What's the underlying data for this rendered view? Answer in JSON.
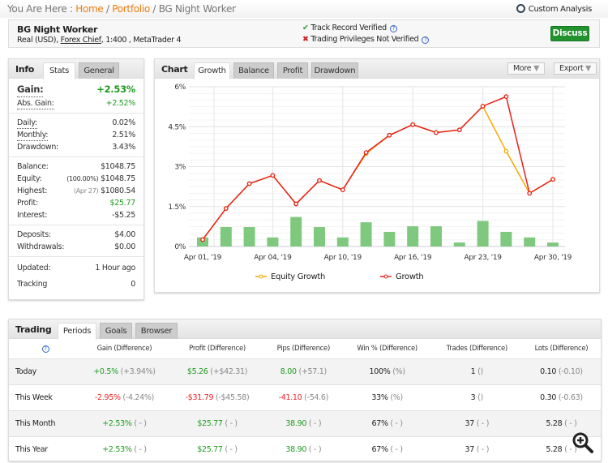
{
  "breadcrumb": {
    "prefix": "You Are Here : ",
    "home": "Home",
    "portfolio": "Portfolio",
    "current": "BG Night Worker",
    "custom_analysis": "Custom Analysis"
  },
  "header": {
    "title": "BG Night Worker",
    "sub_pre": "Real (USD), ",
    "broker": "Forex Chief",
    "sub_post": ", 1:400 , MetaTrader 4",
    "verified": "Track Record Verified",
    "not_verified": "Trading Privileges Not Verified",
    "discuss": "Discuss",
    "colors": {
      "accent": "#f07c12",
      "green": "#22922e"
    }
  },
  "info": {
    "label": "Info",
    "tabs": [
      "Stats",
      "General"
    ],
    "gain_label": "Gain:",
    "gain": "+2.53%",
    "abs_label": "Abs. Gain:",
    "abs": "+2.52%",
    "daily_label": "Daily:",
    "daily": "0.02%",
    "monthly_label": "Monthly:",
    "monthly": "2.51%",
    "drawdown_label": "Drawdown:",
    "drawdown": "3.43%",
    "balance_label": "Balance:",
    "balance": "$1048.75",
    "equity_label": "Equity:",
    "equity_pct": "(100.00%)",
    "equity": "$1048.75",
    "highest_label": "Highest:",
    "highest_date": "(Apr 27)",
    "highest": "$1080.54",
    "profit_label": "Profit:",
    "profit": "$25.77",
    "interest_label": "Interest:",
    "interest": "-$5.25",
    "deposits_label": "Deposits:",
    "deposits": "$4.00",
    "withdrawals_label": "Withdrawals:",
    "withdrawals": "$0.00",
    "updated_label": "Updated:",
    "updated": "1 Hour ago",
    "tracking_label": "Tracking",
    "tracking": "0"
  },
  "chart": {
    "label": "Chart",
    "tabs": [
      "Growth",
      "Balance",
      "Profit",
      "Drawdown"
    ],
    "more": "More",
    "export": "Export"
  },
  "chart_data": {
    "type": "line",
    "title": "Growth",
    "ylim": [
      0,
      6
    ],
    "yticks": [
      "0%",
      "1.5%",
      "3%",
      "4.5%",
      "6%"
    ],
    "ytick_values": [
      0,
      1.5,
      3,
      4.5,
      6
    ],
    "xlabels": [
      {
        "i": 0,
        "text": "Apr 01, '19"
      },
      {
        "i": 3,
        "text": "Apr 04, '19"
      },
      {
        "i": 6,
        "text": "Apr 10, '19"
      },
      {
        "i": 9,
        "text": "Apr 16, '19"
      },
      {
        "i": 12,
        "text": "Apr 23, '19"
      },
      {
        "i": 15,
        "text": "Apr 30, '19"
      }
    ],
    "series": [
      {
        "name": "Equity Growth",
        "color": "#f5a800",
        "values": [
          0.26,
          1.43,
          2.36,
          2.67,
          1.6,
          2.48,
          2.13,
          3.49,
          4.18,
          4.58,
          4.28,
          4.38,
          5.27,
          3.58,
          2.0,
          2.52
        ]
      },
      {
        "name": "Growth",
        "color": "#e8201a",
        "values": [
          0.26,
          1.43,
          2.36,
          2.67,
          1.6,
          2.48,
          2.13,
          3.53,
          4.18,
          4.58,
          4.28,
          4.38,
          5.27,
          5.63,
          2.0,
          2.52
        ]
      }
    ],
    "bars": {
      "color": "#7fc97f",
      "values": [
        0.34,
        0.73,
        0.73,
        0.34,
        1.11,
        0.73,
        0.34,
        0.91,
        0.55,
        0.76,
        0.76,
        0.15,
        0.96,
        0.55,
        0.34,
        0.15
      ]
    },
    "legend": "bottom"
  },
  "trading": {
    "label": "Trading",
    "tabs": [
      "Periods",
      "Goals",
      "Browser"
    ],
    "headers": [
      "Gain (Difference)",
      "Profit (Difference)",
      "Pips (Difference)",
      "Win % (Difference)",
      "Trades (Difference)",
      "Lots (Difference)"
    ],
    "rows": [
      {
        "period": "Today",
        "gain": "+0.5%",
        "gain_d": "(+3.94%)",
        "gc": "g",
        "profit": "$5.26",
        "profit_d": "(+$42.31)",
        "pips": "8.00",
        "pips_d": "(+57.1)",
        "win": "100%",
        "win_d": "(%)",
        "trades": "1",
        "trades_d": "()",
        "lots": "0.10",
        "lots_d": "(-0.10)"
      },
      {
        "period": "This Week",
        "gain": "-2.95%",
        "gain_d": "(-4.24%)",
        "gc": "r",
        "profit": "-$31.79",
        "profit_d": "(-$45.58)",
        "pips": "-41.10",
        "pips_d": "(-54.6)",
        "win": "33%",
        "win_d": "(%)",
        "trades": "3",
        "trades_d": "()",
        "lots": "0.30",
        "lots_d": "(-0.63)"
      },
      {
        "period": "This Month",
        "gain": "+2.53%",
        "gain_d": "( - )",
        "gc": "g",
        "profit": "$25.77",
        "profit_d": "( - )",
        "pips": "38.90",
        "pips_d": "( - )",
        "win": "67%",
        "win_d": "( - )",
        "trades": "37",
        "trades_d": "( - )",
        "lots": "5.28",
        "lots_d": "( - )"
      },
      {
        "period": "This Year",
        "gain": "+2.53%",
        "gain_d": "( - )",
        "gc": "g",
        "profit": "$25.77",
        "profit_d": "( - )",
        "pips": "38.90",
        "pips_d": "( - )",
        "win": "67%",
        "win_d": "( - )",
        "trades": "37",
        "trades_d": "( - )",
        "lots": "5.28",
        "lots_d": "( - )"
      }
    ]
  }
}
